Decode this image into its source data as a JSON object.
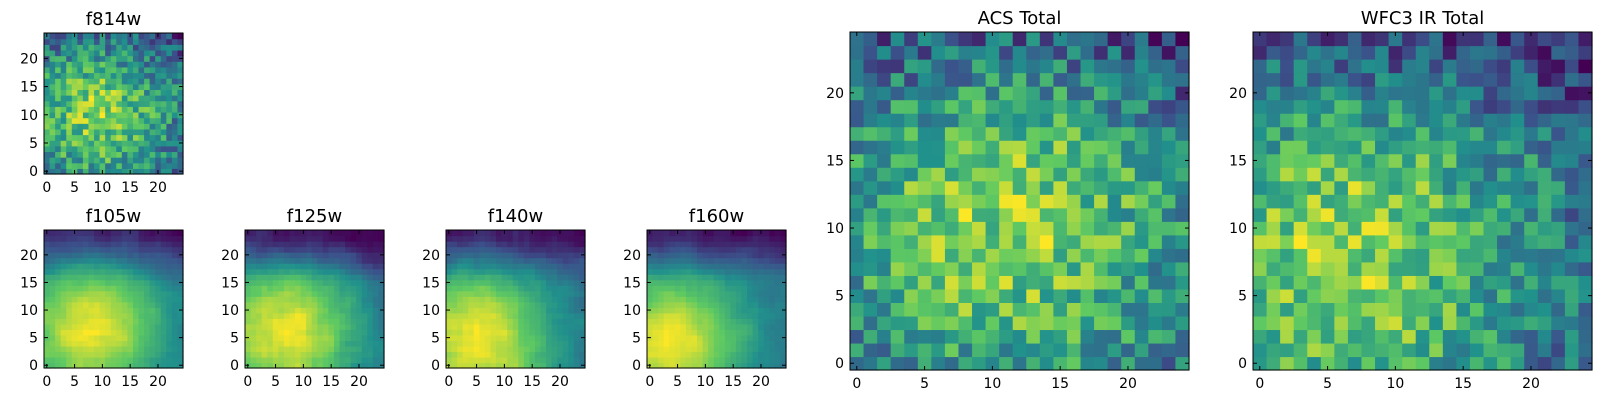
{
  "chart_data": [
    {
      "type": "heatmap",
      "id": "f814w",
      "title": "f814w",
      "size": [
        25,
        25
      ],
      "xticks": [
        "0",
        "5",
        "10",
        "15",
        "20"
      ],
      "yticks": [
        "0",
        "5",
        "10",
        "15",
        "20"
      ],
      "pattern": {
        "bright_center": [
          9,
          11
        ],
        "bright_spread": 10,
        "top_dark": 0.3,
        "noise": 0.55,
        "smooth": false,
        "seed": 11
      }
    },
    {
      "type": "heatmap",
      "id": "f105w",
      "title": "f105w",
      "size": [
        25,
        25
      ],
      "xticks": [
        "0",
        "5",
        "10",
        "15",
        "20"
      ],
      "yticks": [
        "0",
        "5",
        "10",
        "15",
        "20"
      ],
      "pattern": {
        "bright_center": [
          8,
          7
        ],
        "bright_spread": 9,
        "top_dark": 0.6,
        "noise": 0.22,
        "smooth": true,
        "seed": 23
      }
    },
    {
      "type": "heatmap",
      "id": "f125w",
      "title": "f125w",
      "size": [
        25,
        25
      ],
      "xticks": [
        "0",
        "5",
        "10",
        "15",
        "20"
      ],
      "yticks": [
        "0",
        "5",
        "10",
        "15",
        "20"
      ],
      "pattern": {
        "bright_center": [
          7,
          6
        ],
        "bright_spread": 10,
        "top_dark": 0.55,
        "noise": 0.26,
        "smooth": true,
        "seed": 37
      }
    },
    {
      "type": "heatmap",
      "id": "f140w",
      "title": "f140w",
      "size": [
        25,
        25
      ],
      "xticks": [
        "0",
        "5",
        "10",
        "15",
        "20"
      ],
      "yticks": [
        "0",
        "5",
        "10",
        "15",
        "20"
      ],
      "pattern": {
        "bright_center": [
          5,
          5
        ],
        "bright_spread": 10,
        "top_dark": 0.55,
        "noise": 0.24,
        "smooth": true,
        "seed": 41
      }
    },
    {
      "type": "heatmap",
      "id": "f160w",
      "title": "f160w",
      "size": [
        25,
        25
      ],
      "xticks": [
        "0",
        "5",
        "10",
        "15",
        "20"
      ],
      "yticks": [
        "0",
        "5",
        "10",
        "15",
        "20"
      ],
      "pattern": {
        "bright_center": [
          4,
          4
        ],
        "bright_spread": 9,
        "top_dark": 0.7,
        "noise": 0.22,
        "smooth": true,
        "seed": 53
      }
    },
    {
      "type": "heatmap",
      "id": "acs-total",
      "title": "ACS Total",
      "size": [
        25,
        25
      ],
      "xticks": [
        "0",
        "5",
        "10",
        "15",
        "20"
      ],
      "yticks": [
        "0",
        "5",
        "10",
        "15",
        "20"
      ],
      "pattern": {
        "bright_center": [
          11,
          11
        ],
        "bright_spread": 11,
        "top_dark": 0.35,
        "noise": 0.5,
        "smooth": false,
        "seed": 67
      }
    },
    {
      "type": "heatmap",
      "id": "wfc3-ir-total",
      "title": "WFC3 IR Total",
      "size": [
        25,
        25
      ],
      "xticks": [
        "0",
        "5",
        "10",
        "15",
        "20"
      ],
      "yticks": [
        "0",
        "5",
        "10",
        "15",
        "20"
      ],
      "pattern": {
        "bright_center": [
          6,
          8
        ],
        "bright_spread": 11,
        "top_dark": 0.35,
        "noise": 0.48,
        "smooth": false,
        "seed": 79
      }
    }
  ],
  "colormap": [
    "#440154",
    "#3b528b",
    "#21918c",
    "#5ec962",
    "#fde725"
  ]
}
